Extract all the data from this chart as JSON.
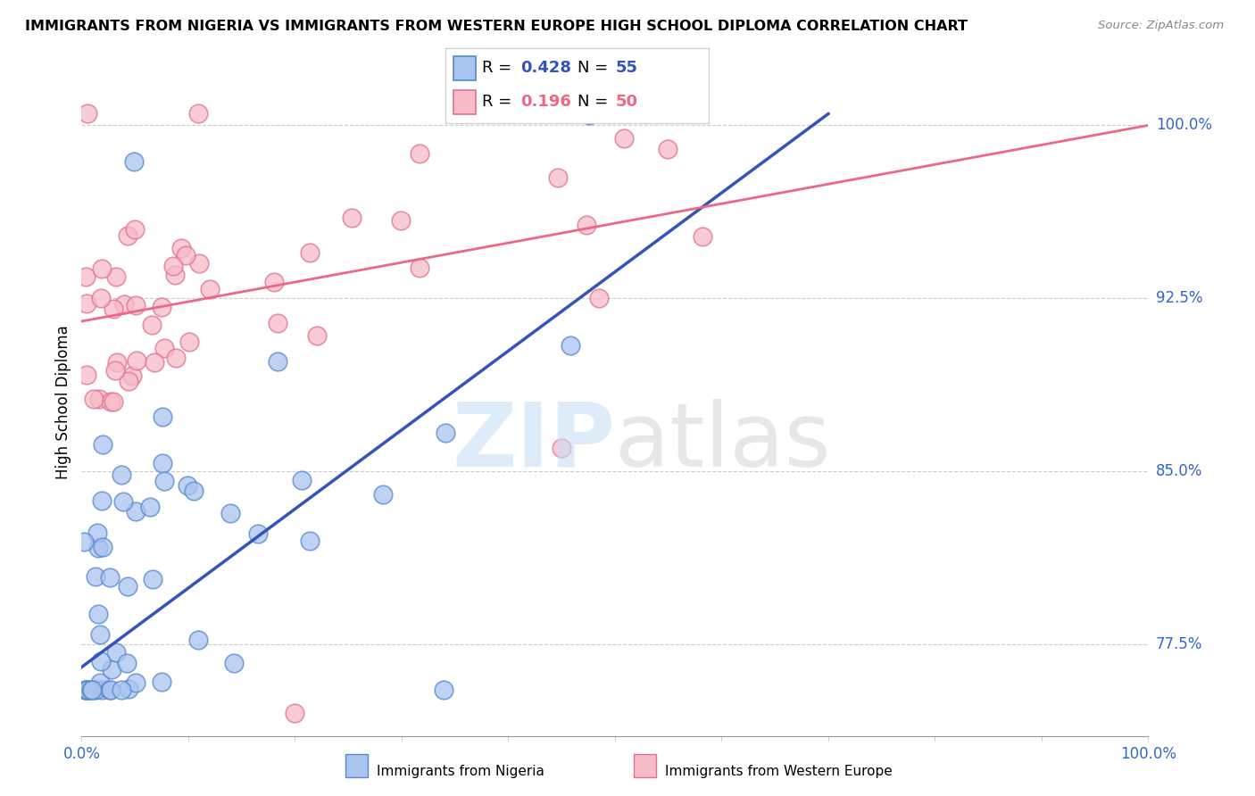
{
  "title": "IMMIGRANTS FROM NIGERIA VS IMMIGRANTS FROM WESTERN EUROPE HIGH SCHOOL DIPLOMA CORRELATION CHART",
  "source": "Source: ZipAtlas.com",
  "ylabel": "High School Diploma",
  "xmin": 0.0,
  "xmax": 100.0,
  "ymin": 73.5,
  "ymax": 102.5,
  "nigeria_color": "#aac4f0",
  "nigeria_edge": "#5588cc",
  "western_color": "#f8bbc8",
  "western_edge": "#e07090",
  "nigeria_R": 0.428,
  "nigeria_N": 55,
  "western_R": 0.196,
  "western_N": 50,
  "nigeria_line_color": "#3355bb",
  "western_line_color": "#ee6688",
  "watermark_zip_color": "#c8dff5",
  "watermark_atlas_color": "#d8d8d8",
  "right_label_color": "#3366cc",
  "yticks_shown": [
    77.5,
    85.0,
    92.5,
    100.0
  ],
  "nigeria_line_x0": 0.0,
  "nigeria_line_y0": 76.5,
  "nigeria_line_x1": 70.0,
  "nigeria_line_y1": 100.5,
  "western_line_x0": 0.0,
  "western_line_y0": 91.5,
  "western_line_x1": 100.0,
  "western_line_y1": 100.0
}
